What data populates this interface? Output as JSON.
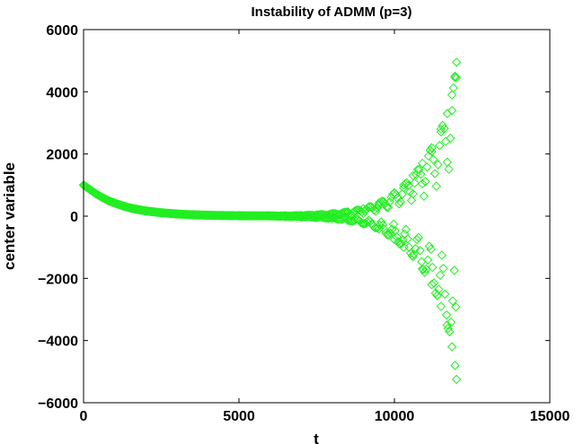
{
  "chart_data": {
    "type": "scatter",
    "title": "Instability of ADMM (p=3)",
    "xlabel": "t",
    "ylabel": "center variable",
    "xlim": [
      0,
      15000
    ],
    "ylim": [
      -6000,
      6000
    ],
    "xticks": [
      0,
      5000,
      10000,
      15000
    ],
    "yticks": [
      -6000,
      -4000,
      -2000,
      0,
      2000,
      4000,
      6000
    ],
    "xtick_labels": [
      "0",
      "5000",
      "10000",
      "15000"
    ],
    "ytick_labels": [
      "−6000",
      "−4000",
      "−2000",
      "0",
      "2000",
      "4000",
      "6000"
    ],
    "marker": "diamond",
    "grid": false,
    "color": "#22ee22",
    "series": [
      {
        "x": [
          0,
          200,
          400,
          600,
          800,
          1000,
          1300,
          1600,
          2000,
          2500,
          3000,
          3500,
          4000,
          4500,
          5000,
          5500,
          6000,
          6500,
          7000,
          7500,
          8000,
          8500,
          9000,
          9500,
          10000,
          10300,
          10600,
          10900,
          11200,
          11500,
          11700,
          11850,
          11950,
          12000
        ],
        "y_upper": [
          1000,
          860,
          720,
          600,
          500,
          420,
          320,
          240,
          170,
          110,
          70,
          45,
          30,
          20,
          15,
          12,
          12,
          15,
          25,
          45,
          80,
          140,
          240,
          420,
          750,
          1000,
          1300,
          1700,
          2200,
          2800,
          3300,
          3900,
          4500,
          4950
        ],
        "y_lower": [
          1000,
          860,
          720,
          600,
          500,
          420,
          320,
          240,
          170,
          110,
          70,
          45,
          30,
          20,
          15,
          12,
          12,
          -15,
          -25,
          -45,
          -80,
          -140,
          -240,
          -420,
          -750,
          -1000,
          -1300,
          -1700,
          -2200,
          -2900,
          -3500,
          -4200,
          -4800,
          -5250
        ]
      }
    ]
  }
}
